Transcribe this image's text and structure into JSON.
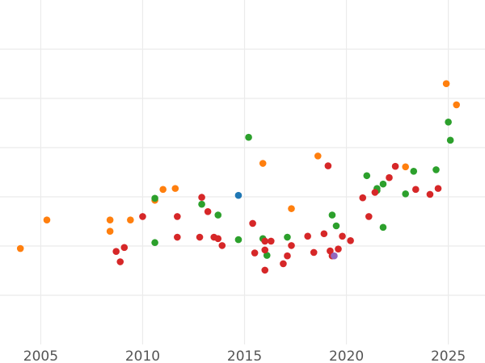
{
  "colors": {
    "background": "#ffffff",
    "grid": "#ebebeb",
    "tick_text": "#555555"
  },
  "chart_data": {
    "type": "scatter",
    "title": "",
    "xlabel": "",
    "ylabel": "",
    "xlim": [
      2003,
      2026.8
    ],
    "ylim": [
      0,
      7
    ],
    "grid": true,
    "legend": "none",
    "x_ticks": [
      2005,
      2010,
      2015,
      2020,
      2025
    ],
    "x_tick_labels": [
      "2005",
      "2010",
      "2015",
      "2020",
      "2025"
    ],
    "y_ticks": [
      1,
      2,
      3,
      4,
      5,
      6
    ],
    "y_tick_labels": [],
    "series": [
      {
        "color": "#ff7f0e",
        "points": [
          [
            2004.0,
            1.95
          ],
          [
            2005.3,
            2.53
          ],
          [
            2008.4,
            2.53
          ],
          [
            2008.4,
            2.3
          ],
          [
            2009.4,
            2.53
          ],
          [
            2010.6,
            2.93
          ],
          [
            2011.0,
            3.15
          ],
          [
            2011.6,
            3.17
          ],
          [
            2015.9,
            3.68
          ],
          [
            2017.3,
            2.76
          ],
          [
            2018.6,
            3.83
          ],
          [
            2022.9,
            3.61
          ],
          [
            2024.9,
            5.3
          ],
          [
            2025.4,
            4.87
          ]
        ]
      },
      {
        "color": "#2ca02c",
        "points": [
          [
            2010.6,
            2.97
          ],
          [
            2010.6,
            2.07
          ],
          [
            2012.9,
            2.85
          ],
          [
            2013.7,
            2.63
          ],
          [
            2014.7,
            2.13
          ],
          [
            2015.2,
            4.21
          ],
          [
            2015.9,
            2.15
          ],
          [
            2016.1,
            1.81
          ],
          [
            2017.1,
            2.18
          ],
          [
            2019.3,
            2.63
          ],
          [
            2019.5,
            2.41
          ],
          [
            2021.0,
            3.43
          ],
          [
            2021.5,
            3.17
          ],
          [
            2021.5,
            3.13
          ],
          [
            2021.8,
            3.26
          ],
          [
            2021.8,
            2.38
          ],
          [
            2022.9,
            3.06
          ],
          [
            2023.3,
            3.52
          ],
          [
            2024.4,
            3.55
          ],
          [
            2025.0,
            4.52
          ],
          [
            2025.1,
            4.15
          ]
        ]
      },
      {
        "color": "#d62728",
        "points": [
          [
            2008.7,
            1.89
          ],
          [
            2008.9,
            1.68
          ],
          [
            2009.1,
            1.97
          ],
          [
            2010.0,
            2.6
          ],
          [
            2011.7,
            2.6
          ],
          [
            2011.7,
            2.18
          ],
          [
            2012.9,
            2.99
          ],
          [
            2012.8,
            2.18
          ],
          [
            2013.2,
            2.7
          ],
          [
            2013.5,
            2.18
          ],
          [
            2013.7,
            2.15
          ],
          [
            2013.9,
            2.01
          ],
          [
            2015.4,
            2.46
          ],
          [
            2015.5,
            1.86
          ],
          [
            2016.0,
            2.1
          ],
          [
            2016.0,
            1.92
          ],
          [
            2016.0,
            1.51
          ],
          [
            2016.3,
            2.1
          ],
          [
            2016.9,
            1.64
          ],
          [
            2017.1,
            1.8
          ],
          [
            2017.3,
            2.01
          ],
          [
            2018.1,
            2.2
          ],
          [
            2018.4,
            1.87
          ],
          [
            2018.9,
            2.25
          ],
          [
            2019.1,
            3.63
          ],
          [
            2019.2,
            1.9
          ],
          [
            2019.6,
            1.94
          ],
          [
            2019.8,
            2.2
          ],
          [
            2020.2,
            2.11
          ],
          [
            2020.8,
            2.98
          ],
          [
            2021.1,
            2.6
          ],
          [
            2021.4,
            3.09
          ],
          [
            2022.1,
            3.39
          ],
          [
            2022.4,
            3.62
          ],
          [
            2023.4,
            3.15
          ],
          [
            2024.1,
            3.05
          ],
          [
            2024.5,
            3.17
          ],
          [
            2019.3,
            1.8
          ]
        ]
      },
      {
        "color": "#1f77b4",
        "points": [
          [
            2014.7,
            3.03
          ]
        ]
      },
      {
        "color": "#9467bd",
        "points": [
          [
            2019.4,
            1.8
          ]
        ]
      }
    ]
  }
}
